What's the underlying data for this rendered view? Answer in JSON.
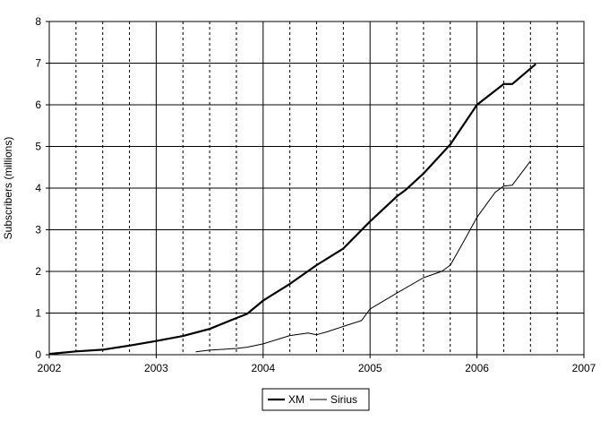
{
  "chart_data": {
    "type": "line",
    "title": "",
    "xlabel": "",
    "ylabel": "Subscribers (millions)",
    "xlim": [
      2002,
      2007
    ],
    "ylim": [
      0,
      8
    ],
    "x_ticks": [
      "2002",
      "2003",
      "2004",
      "2005",
      "2006",
      "2007"
    ],
    "y_ticks": [
      "0",
      "1",
      "2",
      "3",
      "4",
      "5",
      "6",
      "7",
      "8"
    ],
    "grid": {
      "horizontal": "solid",
      "vertical_major": "solid",
      "vertical_minor": "dashed",
      "minor_step": 0.25
    },
    "legend_position": "bottom-center",
    "series": [
      {
        "name": "XM",
        "color": "#000000",
        "line_weight": "thick",
        "points": [
          [
            2002.0,
            0.02
          ],
          [
            2002.25,
            0.08
          ],
          [
            2002.5,
            0.12
          ],
          [
            2002.75,
            0.22
          ],
          [
            2003.0,
            0.33
          ],
          [
            2003.25,
            0.45
          ],
          [
            2003.5,
            0.62
          ],
          [
            2003.75,
            0.88
          ],
          [
            2003.85,
            0.98
          ],
          [
            2004.0,
            1.3
          ],
          [
            2004.25,
            1.7
          ],
          [
            2004.5,
            2.15
          ],
          [
            2004.75,
            2.55
          ],
          [
            2005.0,
            3.2
          ],
          [
            2005.25,
            3.8
          ],
          [
            2005.33,
            3.95
          ],
          [
            2005.5,
            4.35
          ],
          [
            2005.75,
            5.05
          ],
          [
            2006.0,
            6.0
          ],
          [
            2006.25,
            6.5
          ],
          [
            2006.33,
            6.5
          ],
          [
            2006.55,
            6.98
          ]
        ]
      },
      {
        "name": "Sirius",
        "color": "#000000",
        "line_weight": "thin",
        "points": [
          [
            2003.37,
            0.07
          ],
          [
            2003.5,
            0.11
          ],
          [
            2003.75,
            0.15
          ],
          [
            2003.85,
            0.18
          ],
          [
            2004.0,
            0.26
          ],
          [
            2004.25,
            0.46
          ],
          [
            2004.42,
            0.52
          ],
          [
            2004.5,
            0.48
          ],
          [
            2004.6,
            0.55
          ],
          [
            2004.75,
            0.68
          ],
          [
            2004.92,
            0.82
          ],
          [
            2005.0,
            1.1
          ],
          [
            2005.25,
            1.48
          ],
          [
            2005.5,
            1.85
          ],
          [
            2005.67,
            2.0
          ],
          [
            2005.75,
            2.15
          ],
          [
            2005.85,
            2.6
          ],
          [
            2006.0,
            3.3
          ],
          [
            2006.17,
            3.9
          ],
          [
            2006.25,
            4.05
          ],
          [
            2006.33,
            4.07
          ],
          [
            2006.5,
            4.65
          ]
        ]
      }
    ]
  }
}
